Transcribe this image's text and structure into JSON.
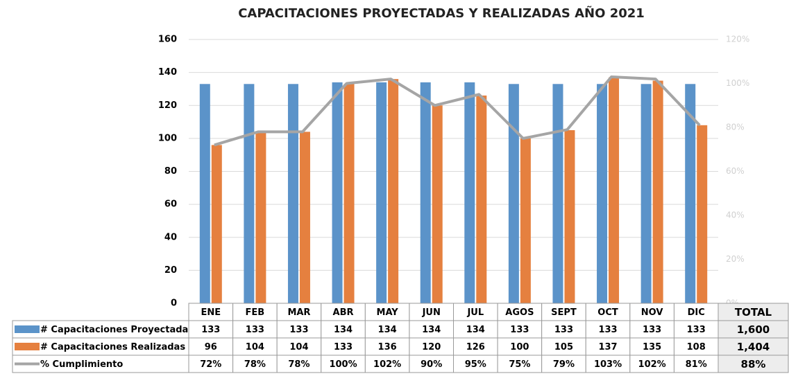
{
  "chart_data": {
    "type": "bar_line_table",
    "title": "CAPACITACIONES PROYECTADAS Y REALIZADAS AÑO 2021",
    "categories": [
      "ENE",
      "FEB",
      "MAR",
      "ABR",
      "MAY",
      "JUN",
      "JUL",
      "AGOS",
      "SEPT",
      "OCT",
      "NOV",
      "DIC"
    ],
    "series": [
      {
        "name": "#  Capacitaciones Proyectadas",
        "color": "#5b93c9",
        "kind": "bar",
        "values": [
          133,
          133,
          133,
          134,
          134,
          134,
          134,
          133,
          133,
          133,
          133,
          133
        ]
      },
      {
        "name": "#  Capacitaciones Realizadas",
        "color": "#e5803f",
        "kind": "bar",
        "values": [
          96,
          104,
          104,
          133,
          136,
          120,
          126,
          100,
          105,
          137,
          135,
          108
        ]
      },
      {
        "name": "% Cumplimiento",
        "color": "#a5a5a5",
        "kind": "line",
        "axis": "y2",
        "values": [
          72,
          78,
          78,
          100,
          102,
          90,
          95,
          75,
          79,
          103,
          102,
          81
        ],
        "value_labels": [
          "72%",
          "78%",
          "78%",
          "100%",
          "102%",
          "90%",
          "95%",
          "75%",
          "79%",
          "103%",
          "102%",
          "81%"
        ]
      }
    ],
    "totals_header": "TOTAL",
    "totals": [
      1600,
      1404,
      88
    ],
    "totals_labels": [
      "1,600",
      "1,404",
      "88%"
    ],
    "ylim": [
      0,
      160
    ],
    "yticks": [
      0,
      20,
      40,
      60,
      80,
      100,
      120,
      140,
      160
    ],
    "y2lim": [
      0,
      120
    ],
    "y2ticks": [
      {
        "value": 0,
        "label": "0%"
      },
      {
        "value": 20,
        "label": "20%"
      },
      {
        "value": 40,
        "label": "40%"
      },
      {
        "value": 60,
        "label": "60%"
      },
      {
        "value": 80,
        "label": "80%"
      },
      {
        "value": 100,
        "label": "100%"
      },
      {
        "value": 120,
        "label": "120%"
      }
    ],
    "grid": true
  }
}
